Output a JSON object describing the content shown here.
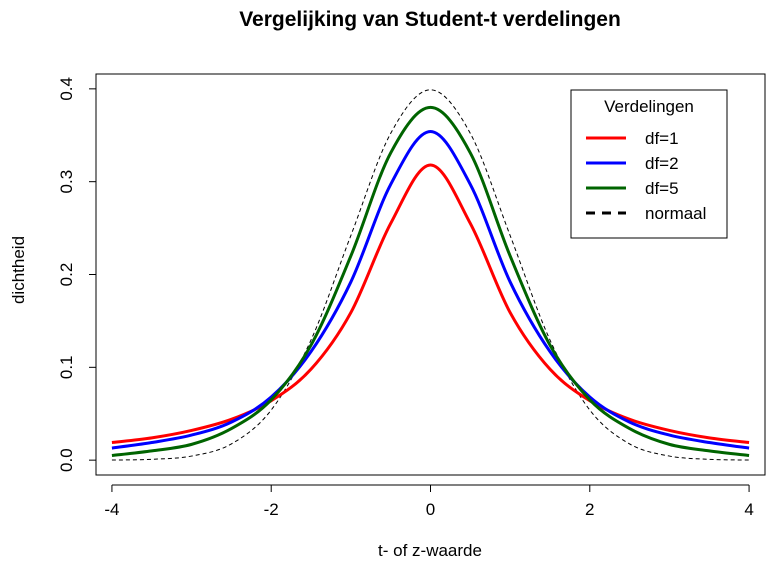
{
  "chart_data": {
    "type": "line",
    "title": "Vergelijking van Student-t verdelingen",
    "xlabel": "t- of z-waarde",
    "ylabel": "dichtheid",
    "xlim": [
      -4.2,
      4.2
    ],
    "ylim": [
      -0.016,
      0.416
    ],
    "x_ticks": [
      -4,
      -2,
      0,
      2,
      4
    ],
    "x_tick_labels": [
      "-4",
      "-2",
      "0",
      "2",
      "4"
    ],
    "y_ticks": [
      0.0,
      0.1,
      0.2,
      0.3,
      0.4
    ],
    "y_tick_labels": [
      "0.0",
      "0.1",
      "0.2",
      "0.3",
      "0.4"
    ],
    "grid": false,
    "legend": {
      "title": "Verdelingen",
      "position": "top-right",
      "entries": [
        "df=1",
        "df=2",
        "df=5",
        "normaal"
      ]
    },
    "x": [
      -4,
      -3.5,
      -3,
      -2.5,
      -2,
      -1.5,
      -1,
      -0.5,
      0,
      0.5,
      1,
      1.5,
      2,
      2.5,
      3,
      3.5,
      4
    ],
    "series": [
      {
        "name": "df=1",
        "color": "#ff0000",
        "dash": "solid",
        "values": [
          0.019,
          0.024,
          0.032,
          0.044,
          0.064,
          0.098,
          0.159,
          0.255,
          0.318,
          0.255,
          0.159,
          0.098,
          0.064,
          0.044,
          0.032,
          0.024,
          0.019
        ]
      },
      {
        "name": "df=2",
        "color": "#0000ff",
        "dash": "solid",
        "values": [
          0.013,
          0.019,
          0.027,
          0.041,
          0.068,
          0.117,
          0.192,
          0.297,
          0.354,
          0.297,
          0.192,
          0.117,
          0.068,
          0.041,
          0.027,
          0.019,
          0.013
        ]
      },
      {
        "name": "df=5",
        "color": "#006400",
        "dash": "solid",
        "values": [
          0.005,
          0.01,
          0.017,
          0.034,
          0.065,
          0.124,
          0.22,
          0.331,
          0.38,
          0.331,
          0.22,
          0.124,
          0.065,
          0.034,
          0.017,
          0.01,
          0.005
        ]
      },
      {
        "name": "normaal",
        "color": "#000000",
        "dash": "dashed",
        "values": [
          0.0001,
          0.0009,
          0.0044,
          0.0175,
          0.054,
          0.1295,
          0.242,
          0.352,
          0.399,
          0.352,
          0.242,
          0.1295,
          0.054,
          0.0175,
          0.0044,
          0.0009,
          0.0001
        ]
      }
    ]
  }
}
